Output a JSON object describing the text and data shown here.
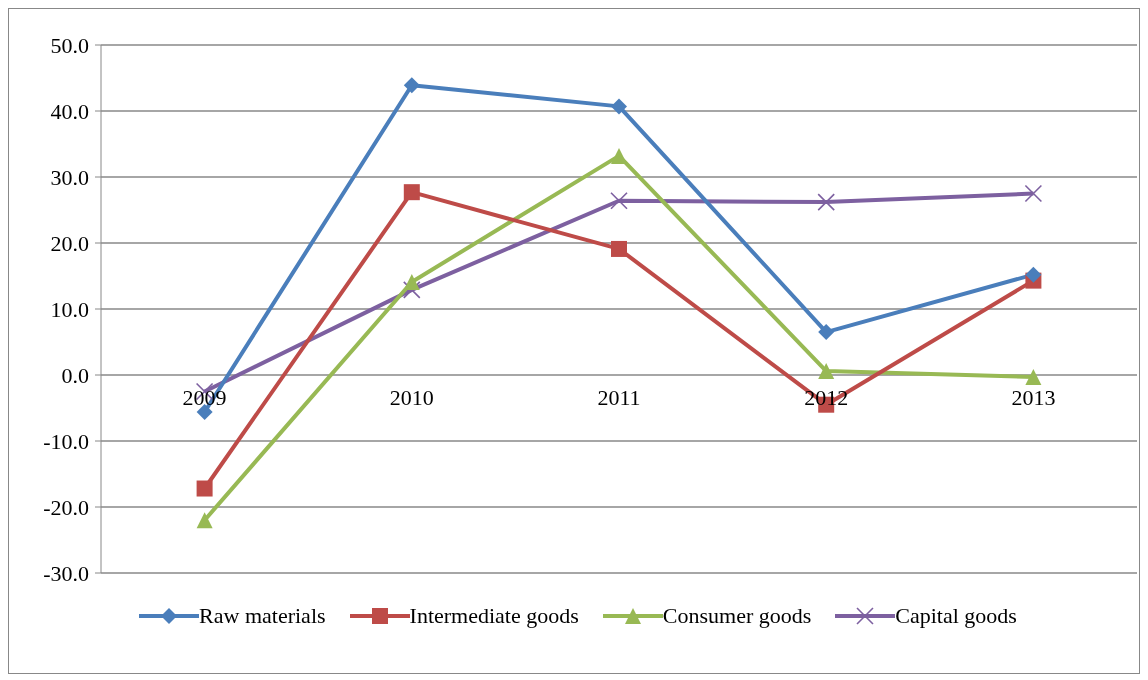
{
  "chart_data": {
    "type": "line",
    "categories": [
      "2009",
      "2010",
      "2011",
      "2012",
      "2013"
    ],
    "series": [
      {
        "name": "Raw materials",
        "color": "#4a7ebb",
        "marker": "diamond",
        "values": [
          -5.6,
          43.9,
          40.7,
          6.5,
          15.2
        ]
      },
      {
        "name": "Intermediate goods",
        "color": "#be4b48",
        "marker": "square",
        "values": [
          -17.2,
          27.7,
          19.1,
          -4.5,
          14.3
        ]
      },
      {
        "name": "Consumer goods",
        "color": "#98b954",
        "marker": "triangle",
        "values": [
          -22,
          14.1,
          33.2,
          0.6,
          -0.3
        ]
      },
      {
        "name": "Capital goods",
        "color": "#7d60a0",
        "marker": "cross",
        "values": [
          -2.5,
          12.9,
          26.4,
          26.2,
          27.5
        ]
      }
    ],
    "ylim": [
      -30,
      50
    ],
    "yticks": [
      {
        "value": -30,
        "label": "-30.0"
      },
      {
        "value": -20,
        "label": "-20.0"
      },
      {
        "value": -10,
        "label": "-10.0"
      },
      {
        "value": 0,
        "label": "0.0"
      },
      {
        "value": 10,
        "label": "10.0"
      },
      {
        "value": 20,
        "label": "20.0"
      },
      {
        "value": 30,
        "label": "30.0"
      },
      {
        "value": 40,
        "label": "40.0"
      },
      {
        "value": 50,
        "label": "50.0"
      }
    ],
    "grid": "y",
    "legend": "bottom"
  }
}
